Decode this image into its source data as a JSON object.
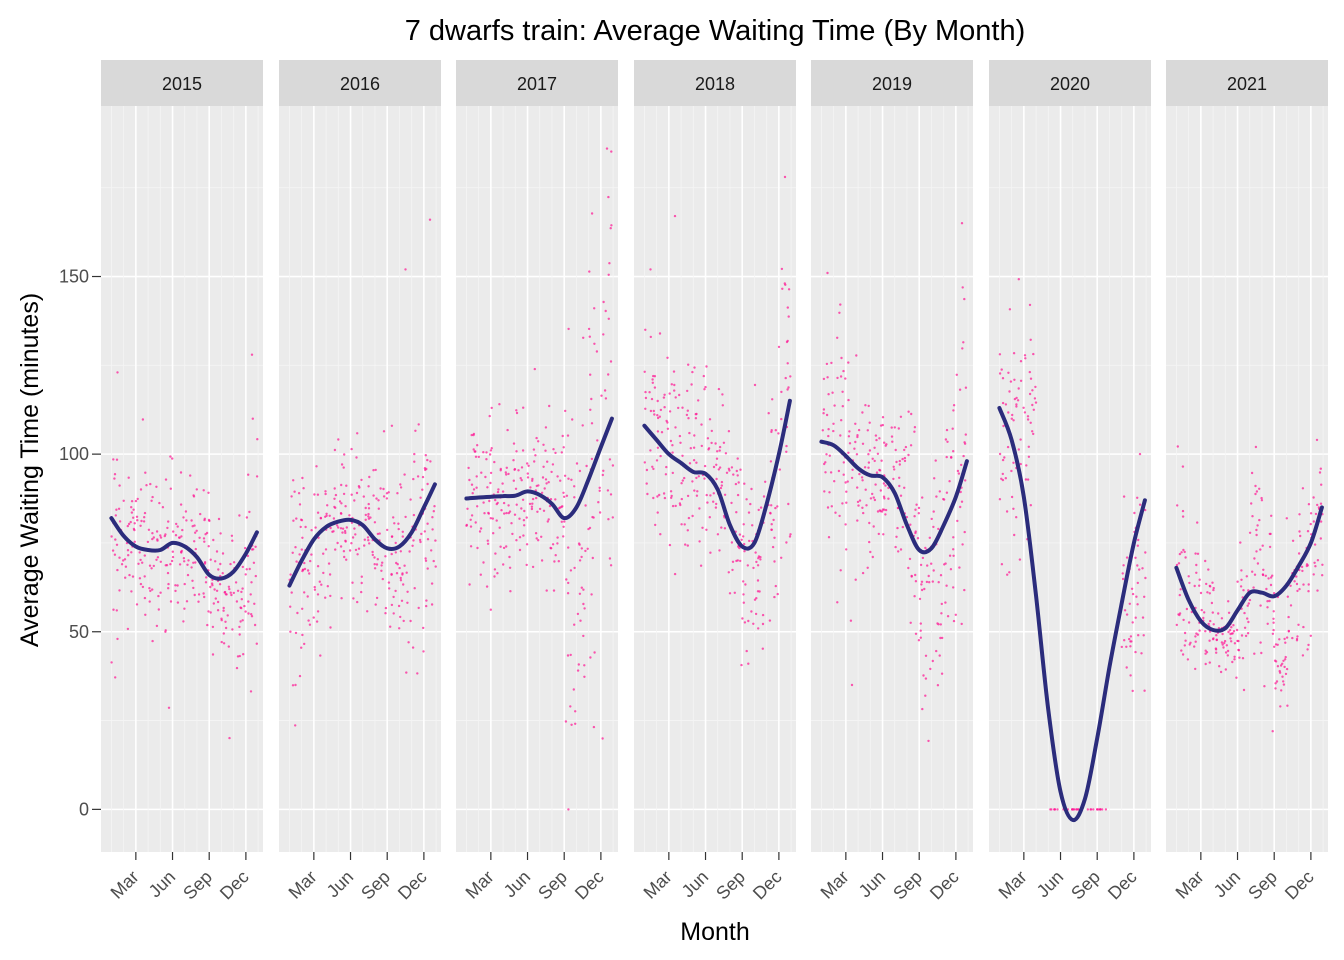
{
  "chart_data": {
    "type": "scatter",
    "title": "7 dwarfs train: Average Waiting Time (By Month)",
    "xlabel": "Month",
    "ylabel": "Average Waiting Time (minutes)",
    "x_ticks": [
      "Mar",
      "Jun",
      "Sep",
      "Dec"
    ],
    "x_tick_months": [
      3,
      6,
      9,
      12
    ],
    "xlim": [
      0.15,
      13.4
    ],
    "ylim": [
      -12,
      198
    ],
    "y_ticks": [
      0,
      50,
      100,
      150
    ],
    "grid": true,
    "point_color": "#ff1493",
    "line_color": "#2b2c7c",
    "panel_bg": "#ebebeb",
    "strip_bg": "#d9d9d9",
    "panels": [
      {
        "year": "2015",
        "points_summary": [
          {
            "month": 1,
            "mean": 80,
            "spread": 14,
            "min": 48,
            "max": 123
          },
          {
            "month": 2,
            "mean": 76,
            "spread": 12
          },
          {
            "month": 3,
            "mean": 74,
            "spread": 12
          },
          {
            "month": 4,
            "mean": 73,
            "spread": 11
          },
          {
            "month": 5,
            "mean": 73,
            "spread": 11
          },
          {
            "month": 6,
            "mean": 74,
            "spread": 9
          },
          {
            "month": 7,
            "mean": 74,
            "spread": 10
          },
          {
            "month": 8,
            "mean": 73,
            "spread": 11
          },
          {
            "month": 9,
            "mean": 66,
            "spread": 11
          },
          {
            "month": 10,
            "mean": 62,
            "spread": 10
          },
          {
            "month": 11,
            "mean": 60,
            "spread": 11
          },
          {
            "month": 12,
            "mean": 68,
            "spread": 15,
            "max": 128
          }
        ],
        "trend": [
          [
            1,
            82
          ],
          [
            2,
            77
          ],
          [
            3,
            74
          ],
          [
            4,
            73
          ],
          [
            5,
            73
          ],
          [
            6,
            75
          ],
          [
            7,
            74
          ],
          [
            8,
            71
          ],
          [
            9,
            66
          ],
          [
            10,
            65
          ],
          [
            11,
            67
          ],
          [
            12,
            72
          ],
          [
            12.9,
            78
          ]
        ]
      },
      {
        "year": "2016",
        "points_summary": [
          {
            "month": 1,
            "mean": 64,
            "spread": 15,
            "min": 35
          },
          {
            "month": 2,
            "mean": 70,
            "spread": 13
          },
          {
            "month": 3,
            "mean": 76,
            "spread": 13
          },
          {
            "month": 4,
            "mean": 79,
            "spread": 12
          },
          {
            "month": 5,
            "mean": 80,
            "spread": 11
          },
          {
            "month": 6,
            "mean": 80,
            "spread": 11
          },
          {
            "month": 7,
            "mean": 79,
            "spread": 11
          },
          {
            "month": 8,
            "mean": 76,
            "spread": 12
          },
          {
            "month": 9,
            "mean": 72,
            "spread": 13
          },
          {
            "month": 10,
            "mean": 72,
            "spread": 16,
            "max": 152
          },
          {
            "month": 11,
            "mean": 76,
            "spread": 15
          },
          {
            "month": 12,
            "mean": 85,
            "spread": 17,
            "max": 166
          }
        ],
        "trend": [
          [
            1,
            63
          ],
          [
            2,
            70
          ],
          [
            3,
            76
          ],
          [
            4,
            79.5
          ],
          [
            5,
            81
          ],
          [
            6,
            81.5
          ],
          [
            7,
            80
          ],
          [
            8,
            76
          ],
          [
            9,
            73.5
          ],
          [
            10,
            74
          ],
          [
            11,
            78
          ],
          [
            12,
            85
          ],
          [
            12.9,
            91.5
          ]
        ]
      },
      {
        "year": "2017",
        "points_summary": [
          {
            "month": 1,
            "mean": 88,
            "spread": 15
          },
          {
            "month": 2,
            "mean": 88,
            "spread": 15
          },
          {
            "month": 3,
            "mean": 88,
            "spread": 13
          },
          {
            "month": 4,
            "mean": 88,
            "spread": 11
          },
          {
            "month": 5,
            "mean": 88,
            "spread": 12
          },
          {
            "month": 6,
            "mean": 89,
            "spread": 11
          },
          {
            "month": 7,
            "mean": 89,
            "spread": 12
          },
          {
            "month": 8,
            "mean": 86,
            "spread": 14
          },
          {
            "month": 9,
            "mean": 75,
            "spread": 20,
            "min": 29
          },
          {
            "month": 10,
            "mean": 75,
            "spread": 20
          },
          {
            "month": 11,
            "mean": 90,
            "spread": 25
          },
          {
            "month": 12,
            "mean": 110,
            "spread": 30,
            "max": 186
          }
        ],
        "trend": [
          [
            1,
            87.5
          ],
          [
            2,
            87.8
          ],
          [
            3,
            88
          ],
          [
            4,
            88.2
          ],
          [
            5,
            88.3
          ],
          [
            6,
            89.5
          ],
          [
            7,
            88.5
          ],
          [
            8,
            86
          ],
          [
            9,
            82
          ],
          [
            10,
            85
          ],
          [
            11,
            93
          ],
          [
            12,
            102
          ],
          [
            12.9,
            110
          ]
        ]
      },
      {
        "year": "2018",
        "points_summary": [
          {
            "month": 1,
            "mean": 107,
            "spread": 17,
            "max": 152
          },
          {
            "month": 2,
            "mean": 104,
            "spread": 16
          },
          {
            "month": 3,
            "mean": 100,
            "spread": 16,
            "max": 167
          },
          {
            "month": 4,
            "mean": 97,
            "spread": 14
          },
          {
            "month": 5,
            "mean": 95,
            "spread": 12
          },
          {
            "month": 6,
            "mean": 98,
            "spread": 12
          },
          {
            "month": 7,
            "mean": 92,
            "spread": 14
          },
          {
            "month": 8,
            "mean": 80,
            "spread": 15
          },
          {
            "month": 9,
            "mean": 68,
            "spread": 14,
            "min": 41
          },
          {
            "month": 10,
            "mean": 68,
            "spread": 15
          },
          {
            "month": 11,
            "mean": 85,
            "spread": 20
          },
          {
            "month": 12,
            "mean": 115,
            "spread": 25,
            "max": 178
          }
        ],
        "trend": [
          [
            1,
            108
          ],
          [
            2,
            104
          ],
          [
            3,
            100
          ],
          [
            4,
            97.5
          ],
          [
            5,
            95
          ],
          [
            6,
            94.5
          ],
          [
            7,
            90
          ],
          [
            8,
            80
          ],
          [
            9,
            74
          ],
          [
            10,
            75
          ],
          [
            11,
            86
          ],
          [
            12,
            100
          ],
          [
            12.9,
            115
          ]
        ]
      },
      {
        "year": "2019",
        "points_summary": [
          {
            "month": 1,
            "mean": 104,
            "spread": 20,
            "max": 151
          },
          {
            "month": 2,
            "mean": 103,
            "spread": 17
          },
          {
            "month": 3,
            "mean": 100,
            "spread": 15,
            "min": 35
          },
          {
            "month": 4,
            "mean": 96,
            "spread": 13
          },
          {
            "month": 5,
            "mean": 93,
            "spread": 11
          },
          {
            "month": 6,
            "mean": 94,
            "spread": 10
          },
          {
            "month": 7,
            "mean": 92,
            "spread": 12
          },
          {
            "month": 8,
            "mean": 80,
            "spread": 17
          },
          {
            "month": 9,
            "mean": 62,
            "spread": 16,
            "min": 32
          },
          {
            "month": 10,
            "mean": 66,
            "spread": 16
          },
          {
            "month": 11,
            "mean": 80,
            "spread": 20
          },
          {
            "month": 12,
            "mean": 97,
            "spread": 22,
            "max": 165
          }
        ],
        "trend": [
          [
            1,
            103.5
          ],
          [
            2,
            102.5
          ],
          [
            3,
            99.5
          ],
          [
            4,
            96
          ],
          [
            5,
            94
          ],
          [
            6,
            93.5
          ],
          [
            7,
            89
          ],
          [
            8,
            80
          ],
          [
            9,
            73
          ],
          [
            10,
            73.5
          ],
          [
            11,
            80
          ],
          [
            12,
            88
          ],
          [
            12.9,
            98
          ]
        ]
      },
      {
        "year": "2020",
        "points_summary": [
          {
            "month": 1,
            "mean": 105,
            "spread": 18
          },
          {
            "month": 2,
            "mean": 112,
            "spread": 15
          },
          {
            "month": 3,
            "mean": 110,
            "spread": 15,
            "max": 142
          },
          {
            "month": 5,
            "mean": 0,
            "spread": 0
          },
          {
            "month": 6,
            "mean": 0,
            "spread": 0
          },
          {
            "month": 7,
            "mean": 0,
            "spread": 0
          },
          {
            "month": 8,
            "mean": 0,
            "spread": 0
          },
          {
            "month": 9,
            "mean": 0,
            "spread": 0
          },
          {
            "month": 11,
            "mean": 56,
            "spread": 10
          },
          {
            "month": 12,
            "mean": 72,
            "spread": 12,
            "max": 100
          }
        ],
        "trend": [
          [
            1,
            113
          ],
          [
            2,
            104
          ],
          [
            3,
            88
          ],
          [
            4,
            60
          ],
          [
            5,
            28
          ],
          [
            6,
            5
          ],
          [
            7,
            -3
          ],
          [
            8,
            3
          ],
          [
            9,
            20
          ],
          [
            10,
            40
          ],
          [
            11,
            58
          ],
          [
            12,
            75
          ],
          [
            12.9,
            87
          ]
        ]
      },
      {
        "year": "2021",
        "points_summary": [
          {
            "month": 1,
            "mean": 66,
            "spread": 14
          },
          {
            "month": 2,
            "mean": 57,
            "spread": 10
          },
          {
            "month": 3,
            "mean": 53,
            "spread": 8
          },
          {
            "month": 4,
            "mean": 48,
            "spread": 6
          },
          {
            "month": 5,
            "mean": 47,
            "spread": 5
          },
          {
            "month": 6,
            "mean": 55,
            "spread": 8
          },
          {
            "month": 7,
            "mean": 72,
            "spread": 12,
            "max": 102
          },
          {
            "month": 8,
            "mean": 58,
            "spread": 14
          },
          {
            "month": 9,
            "mean": 44,
            "spread": 6,
            "min": 29
          },
          {
            "month": 10,
            "mean": 58,
            "spread": 10
          },
          {
            "month": 11,
            "mean": 70,
            "spread": 11
          },
          {
            "month": 12,
            "mean": 80,
            "spread": 10,
            "max": 104
          }
        ],
        "trend": [
          [
            1,
            68
          ],
          [
            2,
            59
          ],
          [
            3,
            53
          ],
          [
            4,
            50.5
          ],
          [
            5,
            51
          ],
          [
            6,
            56
          ],
          [
            7,
            61
          ],
          [
            8,
            61
          ],
          [
            9,
            60
          ],
          [
            10,
            63
          ],
          [
            11,
            68.5
          ],
          [
            12,
            75
          ],
          [
            12.9,
            85
          ]
        ]
      }
    ]
  }
}
